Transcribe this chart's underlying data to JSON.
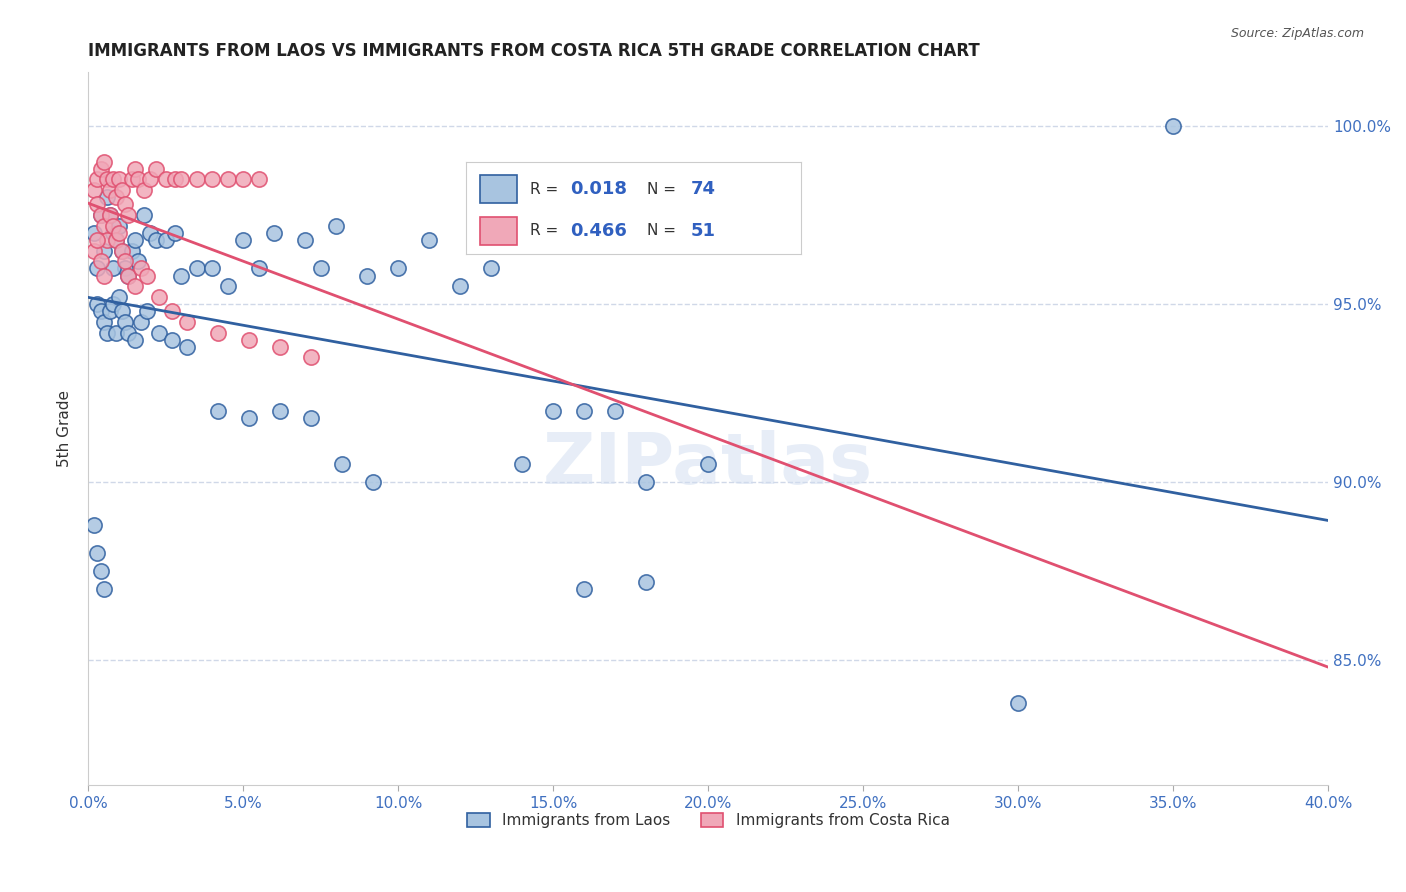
{
  "title": "IMMIGRANTS FROM LAOS VS IMMIGRANTS FROM COSTA RICA 5TH GRADE CORRELATION CHART",
  "source": "Source: ZipAtlas.com",
  "ylabel": "5th Grade",
  "ytick_labels": [
    "85.0%",
    "90.0%",
    "95.0%",
    "100.0%"
  ],
  "ytick_values": [
    0.85,
    0.9,
    0.95,
    1.0
  ],
  "xlim": [
    0.0,
    0.4
  ],
  "ylim": [
    0.815,
    1.015
  ],
  "legend_blue_r": "0.018",
  "legend_blue_n": "74",
  "legend_pink_r": "0.466",
  "legend_pink_n": "51",
  "blue_color": "#a8c4e0",
  "pink_color": "#f0a8b8",
  "blue_line_color": "#3060a0",
  "pink_line_color": "#e05070",
  "grid_color": "#d0d8e8",
  "background_color": "#ffffff",
  "blue_scatter_x": [
    0.002,
    0.003,
    0.004,
    0.005,
    0.006,
    0.007,
    0.008,
    0.009,
    0.01,
    0.011,
    0.012,
    0.013,
    0.014,
    0.015,
    0.016,
    0.018,
    0.02,
    0.022,
    0.025,
    0.028,
    0.03,
    0.035,
    0.04,
    0.045,
    0.05,
    0.055,
    0.06,
    0.07,
    0.075,
    0.08,
    0.09,
    0.1,
    0.11,
    0.12,
    0.13,
    0.15,
    0.16,
    0.17,
    0.18,
    0.2,
    0.003,
    0.004,
    0.005,
    0.006,
    0.007,
    0.008,
    0.009,
    0.01,
    0.011,
    0.012,
    0.013,
    0.015,
    0.017,
    0.019,
    0.023,
    0.027,
    0.032,
    0.042,
    0.052,
    0.062,
    0.072,
    0.082,
    0.092,
    0.14,
    0.16,
    0.18,
    0.3,
    0.002,
    0.003,
    0.004,
    0.005,
    0.008,
    0.35
  ],
  "blue_scatter_y": [
    0.97,
    0.96,
    0.975,
    0.965,
    0.98,
    0.975,
    0.97,
    0.968,
    0.972,
    0.965,
    0.96,
    0.958,
    0.965,
    0.968,
    0.962,
    0.975,
    0.97,
    0.968,
    0.968,
    0.97,
    0.958,
    0.96,
    0.96,
    0.955,
    0.968,
    0.96,
    0.97,
    0.968,
    0.96,
    0.972,
    0.958,
    0.96,
    0.968,
    0.955,
    0.96,
    0.92,
    0.92,
    0.92,
    0.9,
    0.905,
    0.95,
    0.948,
    0.945,
    0.942,
    0.948,
    0.95,
    0.942,
    0.952,
    0.948,
    0.945,
    0.942,
    0.94,
    0.945,
    0.948,
    0.942,
    0.94,
    0.938,
    0.92,
    0.918,
    0.92,
    0.918,
    0.905,
    0.9,
    0.905,
    0.87,
    0.872,
    0.838,
    0.888,
    0.88,
    0.875,
    0.87,
    0.96,
    1.0
  ],
  "pink_scatter_x": [
    0.002,
    0.003,
    0.004,
    0.005,
    0.006,
    0.007,
    0.008,
    0.009,
    0.01,
    0.011,
    0.012,
    0.013,
    0.014,
    0.015,
    0.016,
    0.018,
    0.02,
    0.022,
    0.025,
    0.028,
    0.03,
    0.035,
    0.04,
    0.045,
    0.05,
    0.055,
    0.003,
    0.004,
    0.005,
    0.006,
    0.007,
    0.008,
    0.009,
    0.01,
    0.011,
    0.012,
    0.013,
    0.015,
    0.017,
    0.019,
    0.023,
    0.027,
    0.032,
    0.042,
    0.052,
    0.062,
    0.072,
    0.002,
    0.003,
    0.004,
    0.005
  ],
  "pink_scatter_y": [
    0.982,
    0.985,
    0.988,
    0.99,
    0.985,
    0.982,
    0.985,
    0.98,
    0.985,
    0.982,
    0.978,
    0.975,
    0.985,
    0.988,
    0.985,
    0.982,
    0.985,
    0.988,
    0.985,
    0.985,
    0.985,
    0.985,
    0.985,
    0.985,
    0.985,
    0.985,
    0.978,
    0.975,
    0.972,
    0.968,
    0.975,
    0.972,
    0.968,
    0.97,
    0.965,
    0.962,
    0.958,
    0.955,
    0.96,
    0.958,
    0.952,
    0.948,
    0.945,
    0.942,
    0.94,
    0.938,
    0.935,
    0.965,
    0.968,
    0.962,
    0.958
  ]
}
